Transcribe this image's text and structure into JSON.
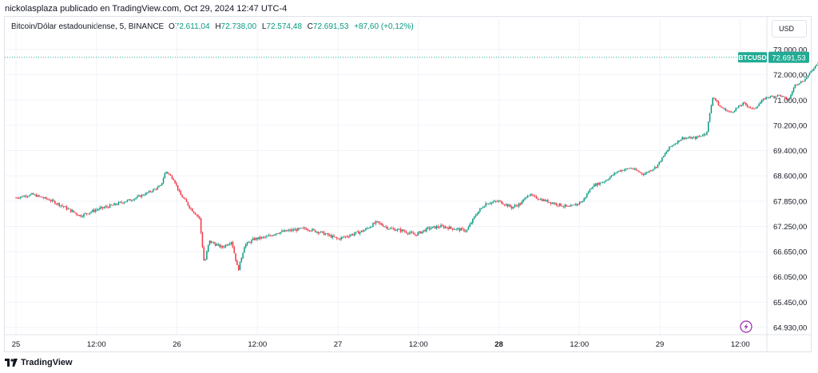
{
  "header": {
    "published_by": "nickolasplaza publicado en TradingView.com, Oct 29, 2024 12:47 UTC-4"
  },
  "legend": {
    "symbol": "Bitcoin/Dólar estadounidense, 5, BINANCE",
    "o_label": "O",
    "o_value": "72.611,04",
    "h_label": "H",
    "h_value": "72.738,00",
    "l_label": "L",
    "l_value": "72.574,48",
    "c_label": "C",
    "c_value": "72.691,53",
    "change": "+87,60 (+0,12%)"
  },
  "currency_button": "USD",
  "last_price": {
    "symbol": "BTCUSD",
    "value": "72.691,53"
  },
  "footer": {
    "brand": "TradingView"
  },
  "colors": {
    "up": "#089981",
    "down": "#f23645",
    "accent": "#22ab94",
    "grid": "#f0f3fa",
    "lightning": "#9c27b0"
  },
  "icons": {
    "alert": "lightning-icon",
    "logo": "tradingview-logo-icon"
  },
  "chart_data": {
    "type": "candlestick",
    "symbol": "BTCUSD",
    "interval": "5",
    "x_ticks": [
      "25",
      "12:00",
      "26",
      "12:00",
      "27",
      "12:00",
      "28",
      "12:00",
      "29",
      "12:00"
    ],
    "bold_x_ticks": [
      "28"
    ],
    "y_ticks": [
      73000,
      72000,
      71000,
      70200,
      69400,
      68600,
      67850,
      67250,
      66650,
      66050,
      65450,
      64930
    ],
    "y_tick_labels": [
      "73.000,00",
      "72.000,00",
      "71.000,00",
      "70.200,00",
      "69.400,00",
      "68.600,00",
      "67.850,00",
      "67.250,00",
      "66.650,00",
      "66.050,00",
      "65.450,00",
      "64.930,00"
    ],
    "ylim": [
      64930,
      73000
    ],
    "price_path": [
      {
        "t": 0.0,
        "p": 67950
      },
      {
        "t": 0.1,
        "p": 68050
      },
      {
        "t": 0.2,
        "p": 67900
      },
      {
        "t": 0.28,
        "p": 67750
      },
      {
        "t": 0.4,
        "p": 67500
      },
      {
        "t": 0.5,
        "p": 67650
      },
      {
        "t": 0.6,
        "p": 67750
      },
      {
        "t": 0.72,
        "p": 67900
      },
      {
        "t": 0.82,
        "p": 68100
      },
      {
        "t": 0.9,
        "p": 68300
      },
      {
        "t": 0.93,
        "p": 68750
      },
      {
        "t": 0.98,
        "p": 68500
      },
      {
        "t": 1.02,
        "p": 68050
      },
      {
        "t": 1.08,
        "p": 67700
      },
      {
        "t": 1.14,
        "p": 67450
      },
      {
        "t": 1.17,
        "p": 66350
      },
      {
        "t": 1.2,
        "p": 66900
      },
      {
        "t": 1.28,
        "p": 66750
      },
      {
        "t": 1.34,
        "p": 66900
      },
      {
        "t": 1.38,
        "p": 66200
      },
      {
        "t": 1.42,
        "p": 66800
      },
      {
        "t": 1.48,
        "p": 66950
      },
      {
        "t": 1.56,
        "p": 67000
      },
      {
        "t": 1.62,
        "p": 67100
      },
      {
        "t": 1.7,
        "p": 67150
      },
      {
        "t": 1.8,
        "p": 67200
      },
      {
        "t": 1.9,
        "p": 67100
      },
      {
        "t": 2.0,
        "p": 66950
      },
      {
        "t": 2.08,
        "p": 67050
      },
      {
        "t": 2.16,
        "p": 67150
      },
      {
        "t": 2.24,
        "p": 67350
      },
      {
        "t": 2.32,
        "p": 67200
      },
      {
        "t": 2.4,
        "p": 67150
      },
      {
        "t": 2.48,
        "p": 67050
      },
      {
        "t": 2.56,
        "p": 67200
      },
      {
        "t": 2.64,
        "p": 67250
      },
      {
        "t": 2.72,
        "p": 67200
      },
      {
        "t": 2.8,
        "p": 67150
      },
      {
        "t": 2.86,
        "p": 67550
      },
      {
        "t": 2.92,
        "p": 67800
      },
      {
        "t": 3.0,
        "p": 67850
      },
      {
        "t": 3.08,
        "p": 67700
      },
      {
        "t": 3.14,
        "p": 67800
      },
      {
        "t": 3.18,
        "p": 68050
      },
      {
        "t": 3.26,
        "p": 67900
      },
      {
        "t": 3.34,
        "p": 67800
      },
      {
        "t": 3.44,
        "p": 67700
      },
      {
        "t": 3.52,
        "p": 67850
      },
      {
        "t": 3.58,
        "p": 68300
      },
      {
        "t": 3.66,
        "p": 68450
      },
      {
        "t": 3.74,
        "p": 68750
      },
      {
        "t": 3.82,
        "p": 68850
      },
      {
        "t": 3.9,
        "p": 68650
      },
      {
        "t": 3.98,
        "p": 68900
      },
      {
        "t": 4.06,
        "p": 69500
      },
      {
        "t": 4.14,
        "p": 69800
      },
      {
        "t": 4.22,
        "p": 69800
      },
      {
        "t": 4.29,
        "p": 69950
      },
      {
        "t": 4.33,
        "p": 71150
      },
      {
        "t": 4.37,
        "p": 70800
      },
      {
        "t": 4.44,
        "p": 70600
      },
      {
        "t": 4.52,
        "p": 70900
      },
      {
        "t": 4.58,
        "p": 70700
      },
      {
        "t": 4.66,
        "p": 71100
      },
      {
        "t": 4.74,
        "p": 71200
      },
      {
        "t": 4.8,
        "p": 71000
      },
      {
        "t": 4.84,
        "p": 71600
      },
      {
        "t": 4.9,
        "p": 71800
      },
      {
        "t": 4.96,
        "p": 72300
      },
      {
        "t": 5.0,
        "p": 72650
      },
      {
        "t": 5.02,
        "p": 72700
      }
    ],
    "last_price": 72691.53
  }
}
